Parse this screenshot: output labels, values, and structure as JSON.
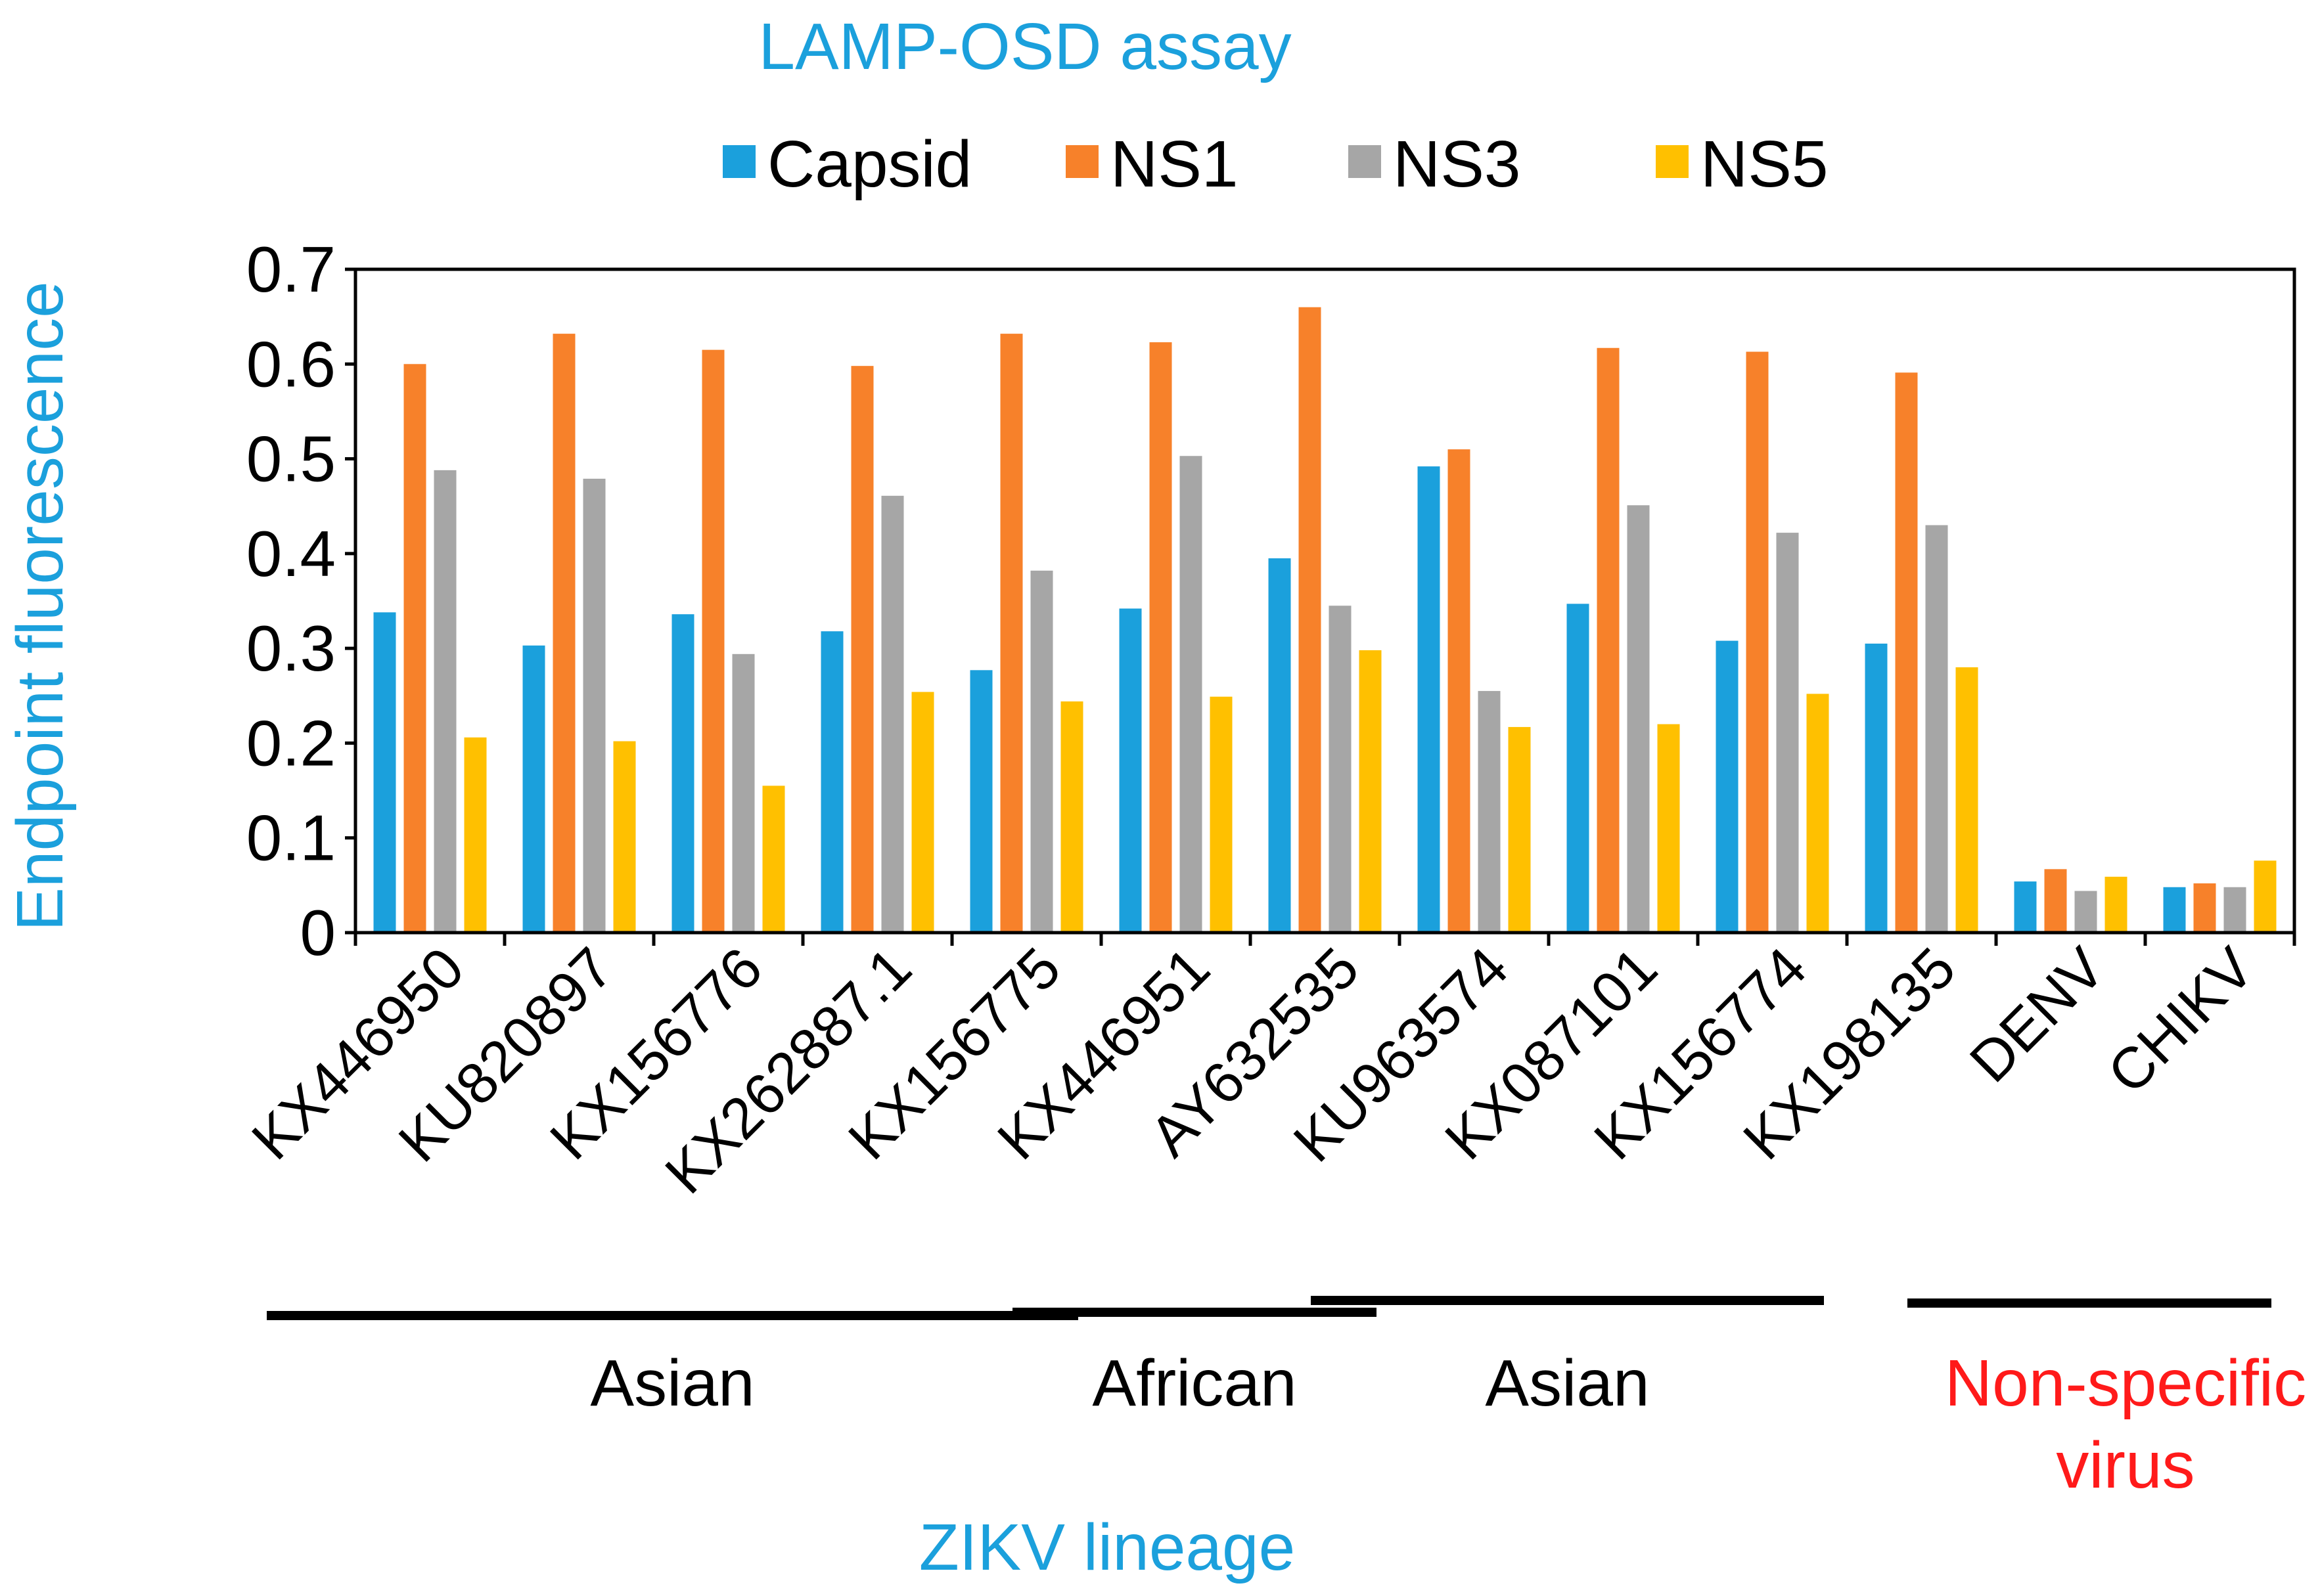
{
  "chart_data": {
    "type": "bar",
    "title": "LAMP-OSD assay",
    "ylabel": "Endpoint fluorescence",
    "xlabel": "ZIKV lineage",
    "ylim": [
      0,
      0.7
    ],
    "yticks": [
      "0",
      "0.1",
      "0.2",
      "0.3",
      "0.4",
      "0.5",
      "0.6",
      "0.7"
    ],
    "legend_position": "top",
    "categories": [
      "KX446950",
      "KU820897",
      "KX156776",
      "KX262887.1",
      "KX156775",
      "KX446951",
      "AY632535",
      "KU963574",
      "KX087101",
      "KX156774",
      "KX198135",
      "DENV",
      "CHIKV"
    ],
    "series": [
      {
        "name": "Capsid",
        "color": "#1ba0dc",
        "values": [
          0.338,
          0.303,
          0.336,
          0.318,
          0.277,
          0.342,
          0.395,
          0.492,
          0.347,
          0.308,
          0.305,
          0.054,
          0.048
        ]
      },
      {
        "name": "NS1",
        "color": "#f7812a",
        "values": [
          0.6,
          0.632,
          0.615,
          0.598,
          0.632,
          0.623,
          0.66,
          0.51,
          0.617,
          0.613,
          0.591,
          0.067,
          0.052
        ]
      },
      {
        "name": "NS3",
        "color": "#a6a6a6",
        "values": [
          0.488,
          0.479,
          0.294,
          0.461,
          0.382,
          0.503,
          0.345,
          0.255,
          0.451,
          0.422,
          0.43,
          0.044,
          0.048
        ]
      },
      {
        "name": "NS5",
        "color": "#ffc000",
        "values": [
          0.206,
          0.202,
          0.155,
          0.254,
          0.244,
          0.249,
          0.298,
          0.217,
          0.22,
          0.252,
          0.28,
          0.059,
          0.076
        ]
      }
    ],
    "groups": [
      {
        "label_lines": [
          "Asian"
        ],
        "first_index": 0,
        "last_index": 4,
        "color": "#000000"
      },
      {
        "label_lines": [
          "African"
        ],
        "first_index": 5,
        "last_index": 6,
        "color": "#000000"
      },
      {
        "label_lines": [
          "Asian"
        ],
        "first_index": 7,
        "last_index": 9,
        "color": "#000000"
      },
      {
        "label_lines": [
          "Non-specific",
          "virus"
        ],
        "first_index": 11,
        "last_index": 12,
        "color": "#ff1a1a"
      }
    ]
  }
}
